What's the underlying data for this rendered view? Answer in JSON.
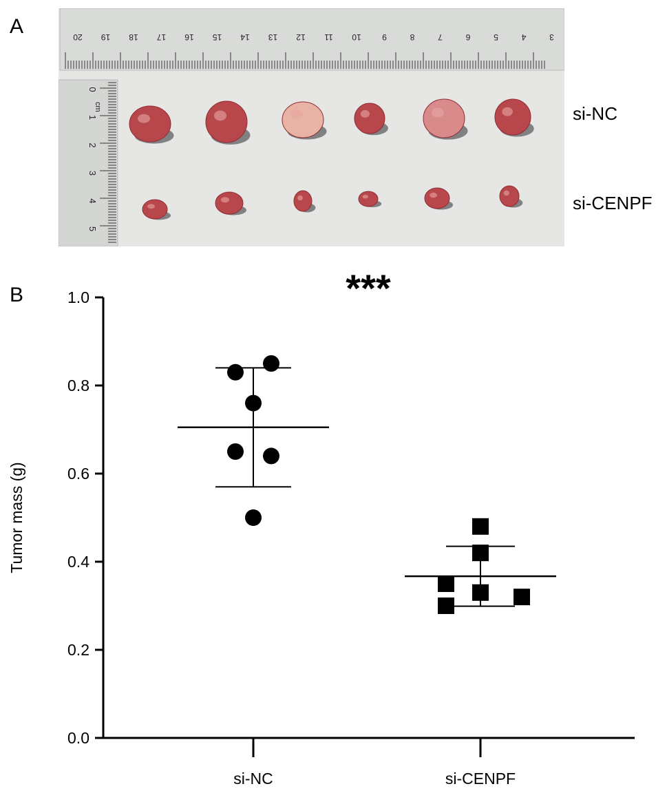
{
  "panel_a": {
    "label": "A",
    "row_labels": [
      "si-NC",
      "si-CENPF"
    ],
    "ruler_top_ticks": [
      "20",
      "19",
      "18",
      "17",
      "16",
      "15",
      "14",
      "13",
      "12",
      "11",
      "10",
      "9",
      "8",
      "7",
      "6",
      "5",
      "4",
      "3"
    ],
    "ruler_side_ticks": [
      "0",
      "1",
      "2",
      "3",
      "4",
      "5"
    ],
    "ruler_unit": "cm"
  },
  "panel_b": {
    "label": "B",
    "significance": "***"
  },
  "colors": {
    "marker": "#000000",
    "photo_background": "#e6e6e4",
    "tumor": "#b8474c"
  },
  "chart_data": {
    "type": "scatter",
    "title": "",
    "xlabel": "",
    "ylabel": "Tumor mass (g)",
    "ylim": [
      0.0,
      1.0
    ],
    "yticks": [
      "0.0",
      "0.2",
      "0.4",
      "0.6",
      "0.8",
      "1.0"
    ],
    "categories": [
      "si-NC",
      "si-CENPF"
    ],
    "grid": false,
    "series": [
      {
        "category": "si-NC",
        "marker": "circle",
        "values": [
          0.83,
          0.85,
          0.76,
          0.65,
          0.64,
          0.5
        ],
        "mean": 0.705,
        "error": 0.135
      },
      {
        "category": "si-CENPF",
        "marker": "square",
        "values": [
          0.48,
          0.42,
          0.35,
          0.33,
          0.32,
          0.3
        ],
        "mean": 0.367,
        "error": 0.068
      }
    ]
  }
}
